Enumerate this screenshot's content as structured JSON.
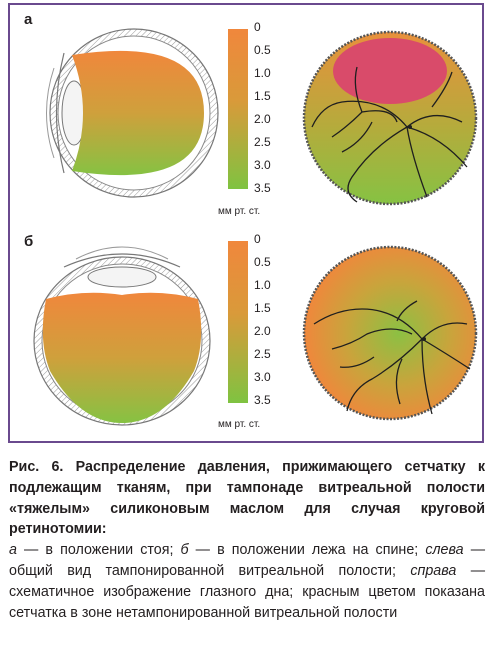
{
  "figure": {
    "panel_a_label": "а",
    "panel_b_label": "б",
    "scale_ticks": [
      "0",
      "0.5",
      "1.0",
      "1.5",
      "2.0",
      "2.5",
      "3.0",
      "3.5"
    ],
    "unit": "мм рт. ст.",
    "colors": {
      "frame": "#6a4a8e",
      "high_pressure": "#f0873c",
      "low_pressure": "#7fc341",
      "untamponaded_retina": "#d94b6a"
    }
  },
  "caption": {
    "title": "Рис. 6. Распределение давления, прижимающего сетчатку к подлежащим тканям, при тампонаде витреальной полости «тяжелым» силиконовым маслом для случая круговой ретинотомии:",
    "a_letter": "а",
    "a_text": " — в положении стоя; ",
    "b_letter": "б",
    "b_text": " — в положении лежа на спине; ",
    "left_word": "слева",
    "left_text": " — общий вид тампонированной витреальной полости; ",
    "right_word": "справа",
    "right_text": " — схематичное изображение глазного дна; красным цветом показана сетчатка в зоне нетампонированной витреальной полости"
  }
}
